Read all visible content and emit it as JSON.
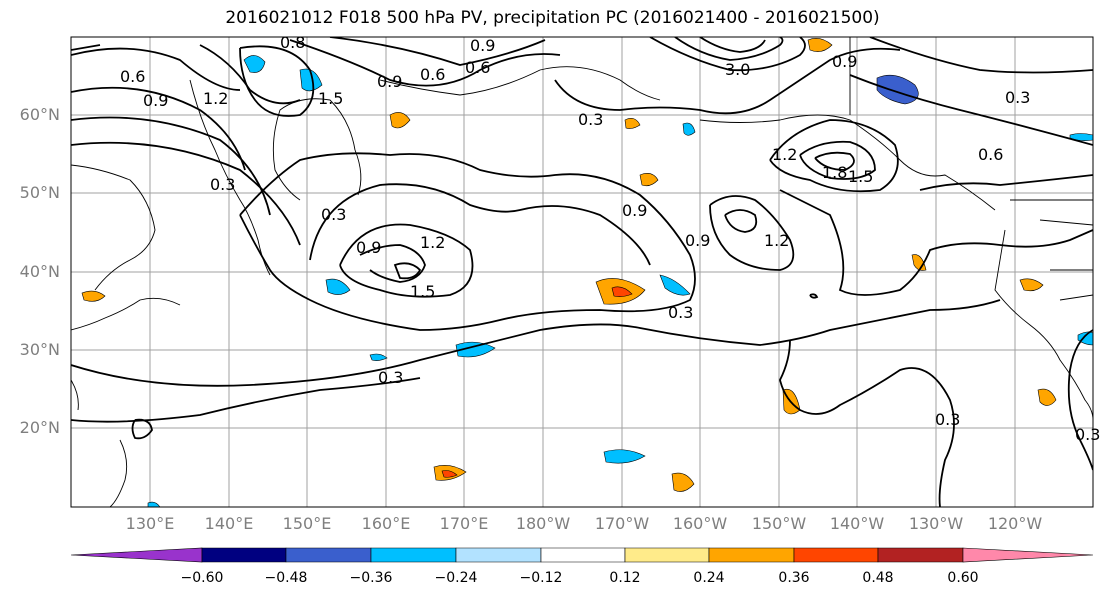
{
  "title": "2016021012 F018 500 hPa PV, precipitation PC (2016021400 - 2016021500)",
  "lat_labels": [
    "60°N",
    "50°N",
    "40°N",
    "30°N",
    "20°N"
  ],
  "lon_labels": [
    "130°E",
    "140°E",
    "150°E",
    "160°E",
    "170°E",
    "180°W",
    "170°W",
    "160°W",
    "150°W",
    "140°W",
    "130°W",
    "120°W"
  ],
  "contour_labels": [
    {
      "text": "0.6"
    },
    {
      "text": "0.9"
    },
    {
      "text": "1.2"
    },
    {
      "text": "0.3"
    },
    {
      "text": "0.9"
    },
    {
      "text": "0.6"
    },
    {
      "text": "0.9"
    },
    {
      "text": "0.6"
    },
    {
      "text": "0.3"
    },
    {
      "text": "3.0"
    },
    {
      "text": "0.9"
    },
    {
      "text": "0.3"
    },
    {
      "text": "0.6"
    },
    {
      "text": "1.2"
    },
    {
      "text": "1.8"
    },
    {
      "text": "1.5"
    },
    {
      "text": "0.9"
    },
    {
      "text": "0.9"
    },
    {
      "text": "1.2"
    },
    {
      "text": "0.3"
    },
    {
      "text": "1.2"
    },
    {
      "text": "1.5"
    },
    {
      "text": "0.9"
    },
    {
      "text": "0.3"
    },
    {
      "text": "0.3"
    },
    {
      "text": "0.3"
    },
    {
      "text": "0.3"
    },
    {
      "text": "1.5"
    },
    {
      "text": "0.8"
    }
  ],
  "colorbar": {
    "ticks": [
      "−0.60",
      "−0.48",
      "−0.36",
      "−0.24",
      "−0.12",
      "0.12",
      "0.24",
      "0.36",
      "0.48",
      "0.60"
    ],
    "colors": [
      "#9933cc",
      "#000080",
      "#3a5fcd",
      "#00bfff",
      "#b2e2ff",
      "#ffffff",
      "#ffeb8a",
      "#ffa500",
      "#ff4500",
      "#b22222",
      "#ff88aa"
    ]
  }
}
